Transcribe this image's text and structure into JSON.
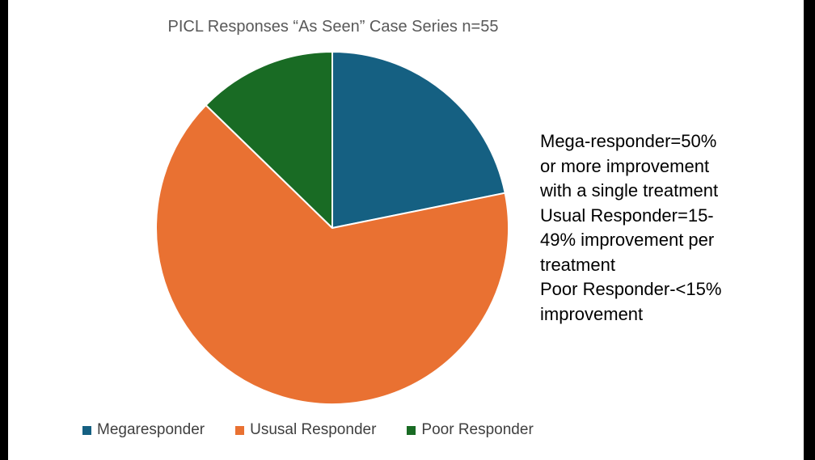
{
  "chart_data": {
    "type": "pie",
    "title": "PICL Responses “As Seen” Case Series n=55",
    "slices": [
      {
        "label": "Megaresponder",
        "value": 12,
        "color": "#156082"
      },
      {
        "label": "Ususal Responder",
        "value": 36,
        "color": "#E97132"
      },
      {
        "label": "Poor Responder",
        "value": 7,
        "color": "#196B24"
      }
    ],
    "start_angle_deg": 0,
    "direction": "clockwise",
    "legend_position": "bottom"
  },
  "annotation": {
    "lines": [
      "Mega-responder=50%",
      "or more improvement",
      "with a single treatment",
      "Usual Responder=15-",
      "49% improvement per",
      "treatment",
      "Poor Responder-<15%",
      "improvement"
    ]
  }
}
